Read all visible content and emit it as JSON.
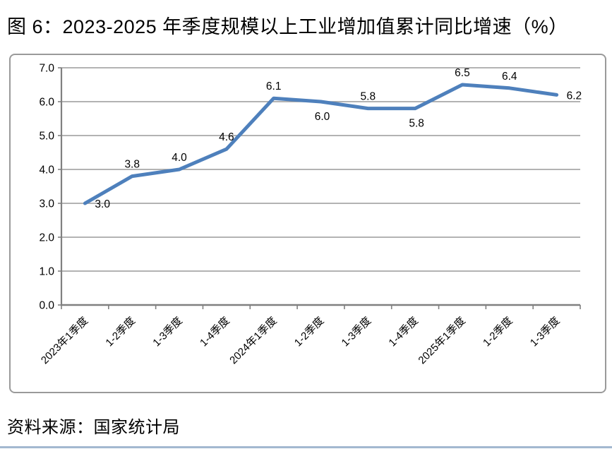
{
  "title": "图 6：2023-2025 年季度规模以上工业增加值累计同比增速（%）",
  "source": "资料来源：国家统计局",
  "colors": {
    "line": "#4E80BC",
    "grid": "#9a9a9a",
    "axis": "#808080",
    "border": "#9a9a9a",
    "footer_divider": "#A3B8D0",
    "text": "#000000"
  },
  "chart_data": {
    "type": "line",
    "title": "图 6：2023-2025 年季度规模以上工业增加值累计同比增速（%）",
    "xlabel": "",
    "ylabel": "",
    "categories": [
      "2023年1季度",
      "1-2季度",
      "1-3季度",
      "1-4季度",
      "2024年1季度",
      "1-2季度",
      "1-3季度",
      "1-4季度",
      "2025年1季度",
      "1-2季度",
      "1-3季度"
    ],
    "values": [
      3.0,
      3.8,
      4.0,
      4.6,
      6.1,
      6.0,
      5.8,
      5.8,
      6.5,
      6.4,
      6.2
    ],
    "data_labels": [
      "3.0",
      "3.8",
      "4.0",
      "4.6",
      "6.1",
      "6.0",
      "5.8",
      "5.8",
      "6.5",
      "6.4",
      "6.2"
    ],
    "label_positions": [
      "right",
      "above",
      "above",
      "above",
      "above",
      "below",
      "above",
      "below",
      "above",
      "above",
      "right"
    ],
    "y_ticks": [
      "7.0",
      "6.0",
      "5.0",
      "4.0",
      "3.0",
      "2.0",
      "1.0",
      "0.0"
    ],
    "ylim": [
      0,
      7
    ],
    "y_step": 1,
    "grid": true,
    "legend": "none",
    "x_label_rotation": -45
  }
}
